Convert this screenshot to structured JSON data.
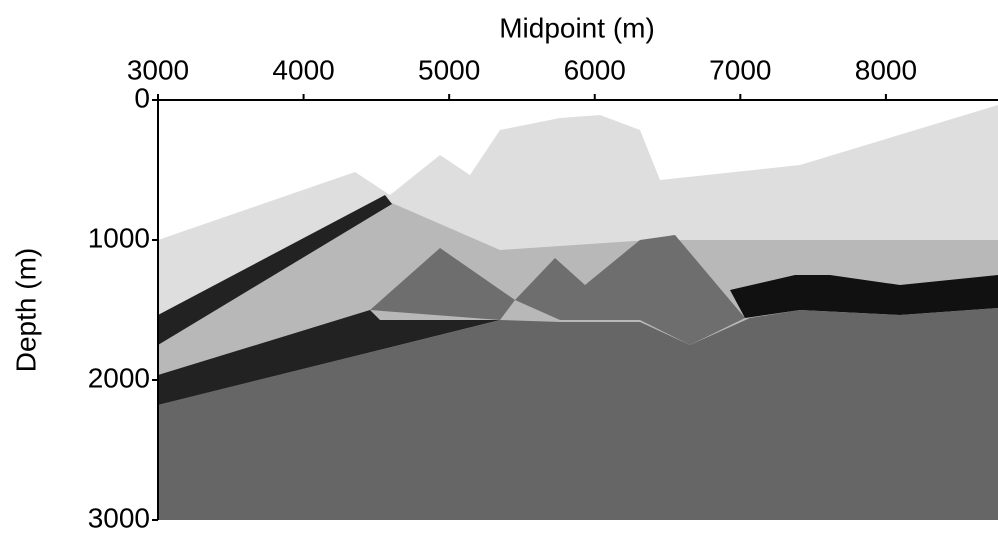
{
  "chart_data": {
    "type": "image",
    "xlabel": "Midpoint (m)",
    "ylabel": "Depth (m)",
    "xlim": [
      3000,
      8770
    ],
    "xticks": [
      3000,
      4000,
      5000,
      6000,
      7000,
      8000
    ],
    "ylim": [
      0,
      3000
    ],
    "yticks": [
      0,
      1000,
      2000,
      3000
    ]
  }
}
